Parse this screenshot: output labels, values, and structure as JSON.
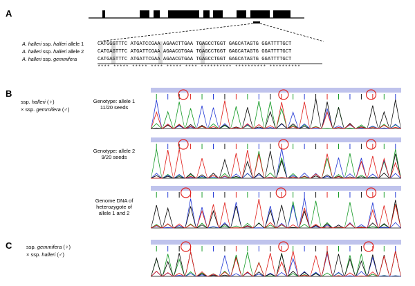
{
  "panels": {
    "a": "A",
    "b": "B",
    "c": "C"
  },
  "gene_model": {
    "exon_blocks": 7
  },
  "alignment": {
    "rows": [
      {
        "label_pre": "A. halleri",
        "label_mid": " ssp. ",
        "label_post": "halleri",
        "label_suffix": " allele 1",
        "sequence": "CATGGGTTTC ATGATCCGAA AGAACTTGAA TGAGCCTGGT GAGCATAGTG GGATTTTGCT"
      },
      {
        "label_pre": "A. halleri",
        "label_mid": " ssp. ",
        "label_post": "halleri",
        "label_suffix": " allele 2",
        "sequence": "CATGAGTTTC ATGATTCGAA AGAACGTGAA TGAGCCTGGT GAGCATAGTG GGATTTTGCT"
      },
      {
        "label_pre": "A. halleri",
        "label_mid": " ssp. ",
        "label_post": "gemmifera",
        "label_suffix": "",
        "sequence": "CATGAGTTTC ATGATTCGAA AGAACGTGAA TGAGCCTGGT GAGCATAGTG GGATTTTGCT"
      }
    ],
    "consensus": "**** ***** ***** **** ***** **** ********** ********** **********"
  },
  "panel_b": {
    "cross_line1_pre": "ssp. ",
    "cross_line1_it": "halleri",
    "cross_line1_sym": " (♀)",
    "cross_line2_pre": "× ssp. ",
    "cross_line2_it": "gemmifera",
    "cross_line2_sym": " (♂)",
    "traces": [
      {
        "line1": "Genotype: allele 1",
        "line2": "11/20 seeds",
        "line3": ""
      },
      {
        "line1": "Genotype: allele 2",
        "line2": "9/20 seeds",
        "line3": ""
      },
      {
        "line1": "Genome DNA of",
        "line2": "heterozygote of",
        "line3": "allele 1 and 2"
      }
    ]
  },
  "panel_c": {
    "cross_line1_pre": "ssp. ",
    "cross_line1_it": "gemmifera",
    "cross_line1_sym": " (♀)",
    "cross_line2_pre": "× ssp. ",
    "cross_line2_it": "halleri",
    "cross_line2_sym": " (♂)"
  },
  "colors": {
    "A": "#1e9e2e",
    "C": "#2a3fd6",
    "G": "#111111",
    "T": "#e0231f",
    "highlight_circle": "#e0231f",
    "base_bar": "#bfc3ec"
  }
}
